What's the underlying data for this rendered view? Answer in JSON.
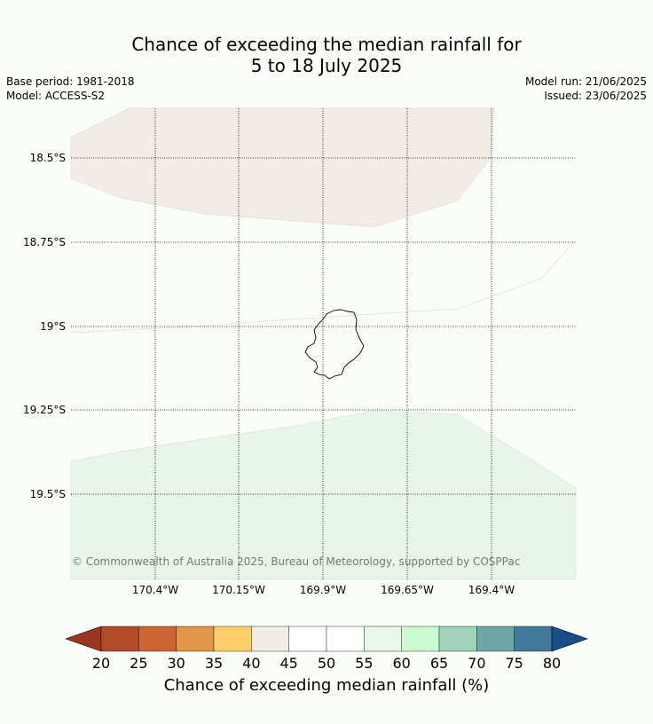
{
  "title": {
    "line1": "Chance of exceeding the median rainfall for",
    "line2": "5 to 18 July 2025"
  },
  "meta": {
    "base_period": "Base period: 1981-2018",
    "model": "Model: ACCESS-S2",
    "model_run": "Model run: 21/06/2025",
    "issued": "Issued: 23/06/2025"
  },
  "map": {
    "lat_labels": [
      "18.5°S",
      "18.75°S",
      "19°S",
      "19.25°S",
      "19.5°S"
    ],
    "lon_labels": [
      "170.4°W",
      "170.15°W",
      "169.9°W",
      "169.65°W",
      "169.4°W"
    ],
    "copyright": "© Commonwealth of Australia 2025, Bureau of Meteorology, supported by COSPPac",
    "colors": {
      "north_region": "#f1ece6",
      "south_region": "#eaf5ea",
      "background": "#fbfdfb",
      "island_outline": "#000000"
    }
  },
  "colorbar": {
    "ticks": [
      "20",
      "25",
      "30",
      "35",
      "40",
      "45",
      "50",
      "55",
      "60",
      "65",
      "70",
      "75",
      "80"
    ],
    "colors": [
      "#b24a26",
      "#cd6532",
      "#e19747",
      "#fdcf6a",
      "#f1ece6",
      "#ffffff",
      "#ffffff",
      "#eaf6ea",
      "#ccfbcf",
      "#9fd1bb",
      "#6ea6a6",
      "#427a9c"
    ],
    "under_color": "#9b3520",
    "over_color": "#174e86",
    "label": "Chance of exceeding median rainfall (%)"
  }
}
